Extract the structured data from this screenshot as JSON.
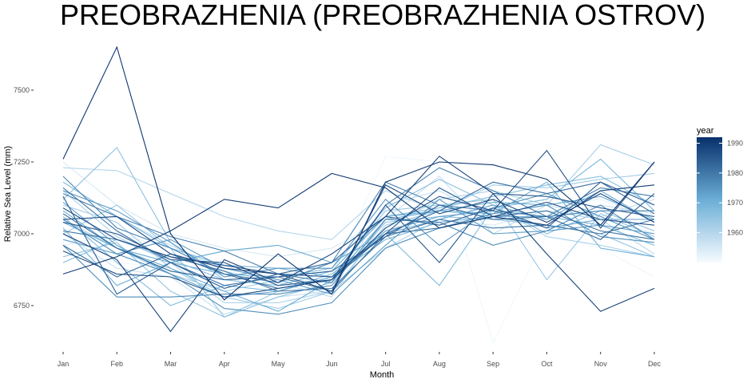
{
  "chart_data": {
    "type": "line",
    "title": "PREOBRAZHENIA (PREOBRAZHENIA OSTROV)",
    "xlabel": "Month",
    "ylabel": "Relative Sea Level (mm)",
    "categories": [
      "Jan",
      "Feb",
      "Mar",
      "Apr",
      "May",
      "Jun",
      "Jul",
      "Aug",
      "Sep",
      "Oct",
      "Nov",
      "Dec"
    ],
    "yticks": [
      6750,
      7000,
      7250,
      7500
    ],
    "ylim": [
      6620,
      7660
    ],
    "grid": false,
    "color_scale": {
      "variable": "year",
      "range": [
        1950,
        1992
      ],
      "ticks": [
        1960,
        1970,
        1980,
        1990
      ],
      "low_color": "#f7fbff",
      "high_color": "#08306b",
      "legend_position": "right"
    },
    "series": [
      {
        "year": 1951,
        "values": [
          6940,
          6900,
          6880,
          6820,
          6800,
          6850,
          7270,
          7250,
          6620,
          7000,
          6950,
          6850
        ]
      },
      {
        "year": 1953,
        "values": [
          6960,
          7000,
          6950,
          6880,
          6850,
          6900,
          7000,
          7100,
          7050,
          7100,
          7120,
          7050
        ]
      },
      {
        "year": 1955,
        "values": [
          7250,
          7100,
          7000,
          6950,
          6920,
          6950,
          7050,
          7050,
          7030,
          7080,
          7060,
          7000
        ]
      },
      {
        "year": 1957,
        "values": [
          7000,
          6880,
          6850,
          6720,
          6780,
          6800,
          7100,
          7150,
          7050,
          7050,
          7100,
          7070
        ]
      },
      {
        "year": 1958,
        "values": [
          7050,
          7060,
          6960,
          6870,
          6830,
          6780,
          7050,
          7200,
          7000,
          7100,
          7060,
          7120
        ]
      },
      {
        "year": 1960,
        "values": [
          7230,
          7220,
          7140,
          7060,
          7010,
          6980,
          7150,
          7080,
          7060,
          7080,
          7050,
          6930
        ]
      },
      {
        "year": 1961,
        "values": [
          7150,
          6990,
          6900,
          6760,
          6760,
          6800,
          6950,
          7050,
          7100,
          6990,
          6960,
          6920
        ]
      },
      {
        "year": 1962,
        "values": [
          7050,
          6950,
          6860,
          6800,
          6840,
          6830,
          7020,
          7120,
          7150,
          7100,
          7310,
          7240
        ]
      },
      {
        "year": 1963,
        "values": [
          7100,
          7040,
          6880,
          6780,
          6740,
          6800,
          7030,
          7080,
          7170,
          7160,
          7190,
          7210
        ]
      },
      {
        "year": 1964,
        "values": [
          7000,
          7100,
          6950,
          6710,
          6800,
          6850,
          7080,
          7100,
          7120,
          6840,
          7070,
          6990
        ]
      },
      {
        "year": 1965,
        "values": [
          6920,
          6970,
          6800,
          6710,
          6780,
          6830,
          7040,
          7060,
          7050,
          7030,
          7000,
          6920
        ]
      },
      {
        "year": 1966,
        "values": [
          7120,
          7300,
          6970,
          6840,
          6850,
          6880,
          7090,
          7190,
          7100,
          7000,
          7080,
          7010
        ]
      },
      {
        "year": 1967,
        "values": [
          6900,
          6980,
          6910,
          6840,
          6820,
          6870,
          7060,
          7090,
          7130,
          7170,
          7200,
          7100
        ]
      },
      {
        "year": 1968,
        "values": [
          7060,
          6900,
          6750,
          6820,
          6800,
          6860,
          7000,
          6820,
          7090,
          7120,
          7260,
          7080
        ]
      },
      {
        "year": 1969,
        "values": [
          7180,
          7060,
          6950,
          6890,
          6880,
          6850,
          6980,
          7040,
          7060,
          7060,
          7030,
          6960
        ]
      },
      {
        "year": 1970,
        "values": [
          7020,
          6820,
          6900,
          6860,
          6850,
          6870,
          7060,
          7080,
          7070,
          7180,
          6950,
          6920
        ]
      },
      {
        "year": 1971,
        "values": [
          7040,
          6950,
          6880,
          6800,
          6730,
          6840,
          7050,
          7080,
          7110,
          7100,
          7130,
          7050
        ]
      },
      {
        "year": 1972,
        "values": [
          7080,
          6950,
          6900,
          6940,
          6960,
          6900,
          7000,
          7050,
          7100,
          7050,
          7150,
          7040
        ]
      },
      {
        "year": 1973,
        "values": [
          7110,
          6960,
          6860,
          6780,
          6800,
          6850,
          7010,
          7060,
          7080,
          7020,
          7050,
          7050
        ]
      },
      {
        "year": 1974,
        "values": [
          6980,
          6930,
          6980,
          6880,
          6840,
          6790,
          6960,
          7120,
          7000,
          7010,
          7030,
          7000
        ]
      },
      {
        "year": 1975,
        "values": [
          7150,
          7080,
          6970,
          6850,
          6880,
          6880,
          7120,
          6960,
          7090,
          7140,
          7060,
          6980
        ]
      },
      {
        "year": 1976,
        "values": [
          7050,
          6930,
          6860,
          6740,
          6720,
          6760,
          6950,
          7020,
          7070,
          7100,
          6990,
          6970
        ]
      },
      {
        "year": 1977,
        "values": [
          6960,
          6780,
          6780,
          6790,
          6790,
          6820,
          7050,
          7040,
          6960,
          7010,
          7100,
          6980
        ]
      },
      {
        "year": 1978,
        "values": [
          7200,
          7020,
          6950,
          6860,
          6830,
          6900,
          7180,
          7100,
          7080,
          7060,
          7080,
          7080
        ]
      },
      {
        "year": 1979,
        "values": [
          7140,
          7060,
          6990,
          6940,
          6860,
          6830,
          7100,
          7230,
          7150,
          7060,
          7160,
          7130
        ]
      },
      {
        "year": 1980,
        "values": [
          7010,
          6980,
          6920,
          6870,
          6800,
          6810,
          6990,
          7050,
          7020,
          7030,
          7000,
          7050
        ]
      },
      {
        "year": 1981,
        "values": [
          7160,
          7010,
          6900,
          6820,
          6850,
          6800,
          7000,
          7020,
          7060,
          7080,
          7010,
          6980
        ]
      },
      {
        "year": 1982,
        "values": [
          6960,
          6850,
          6930,
          6860,
          6810,
          6840,
          7000,
          7080,
          7180,
          7140,
          7180,
          7070
        ]
      },
      {
        "year": 1983,
        "values": [
          7070,
          6950,
          6870,
          6840,
          6850,
          6870,
          6990,
          7100,
          7050,
          7060,
          6980,
          7140
        ]
      },
      {
        "year": 1984,
        "values": [
          7130,
          6790,
          6900,
          6810,
          6860,
          6900,
          7060,
          7030,
          7090,
          7020,
          7180,
          7100
        ]
      },
      {
        "year": 1985,
        "values": [
          7040,
          7000,
          6910,
          6900,
          6820,
          6840,
          7100,
          6900,
          7140,
          7130,
          7090,
          7060
        ]
      },
      {
        "year": 1986,
        "values": [
          7090,
          6980,
          6920,
          6890,
          6860,
          6850,
          7000,
          7160,
          7060,
          7110,
          7050,
          7030
        ]
      },
      {
        "year": 1987,
        "values": [
          6940,
          6860,
          6850,
          6780,
          6810,
          6840,
          7020,
          7130,
          7080,
          7290,
          7020,
          7250
        ]
      },
      {
        "year": 1988,
        "values": [
          7050,
          7060,
          6930,
          6880,
          6860,
          6800,
          7170,
          7070,
          7120,
          7040,
          7140,
          7040
        ]
      },
      {
        "year": 1989,
        "values": [
          7000,
          6910,
          6660,
          6910,
          6830,
          6930,
          7060,
          7270,
          7140,
          6930,
          6730,
          6810
        ]
      },
      {
        "year": 1990,
        "values": [
          6860,
          6920,
          7010,
          7120,
          7090,
          7210,
          7160,
          7020,
          7060,
          7030,
          7150,
          7170
        ]
      },
      {
        "year": 1991,
        "values": [
          7260,
          7650,
          7000,
          6770,
          6930,
          6790,
          7180,
          7250,
          7240,
          7190,
          7030,
          7250
        ]
      }
    ]
  }
}
